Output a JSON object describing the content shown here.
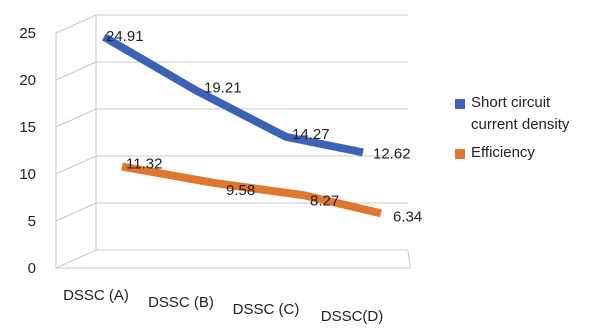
{
  "chart_data": {
    "type": "line",
    "categories": [
      "DSSC (A)",
      "DSSC (B)",
      "DSSC (C)",
      "DSSC(D)"
    ],
    "series": [
      {
        "name": "Short circuit current density",
        "values": [
          24.91,
          19.21,
          14.27,
          12.62
        ],
        "color": "#3c62b5"
      },
      {
        "name": "Efficiency",
        "values": [
          11.32,
          9.58,
          8.27,
          6.34
        ],
        "color": "#e0772e"
      }
    ],
    "yticks": [
      0,
      5,
      10,
      15,
      20,
      25
    ],
    "ylim": [
      0,
      25
    ],
    "grid": true,
    "legend_position": "right",
    "legend_labels": [
      "Short circuit",
      "current density",
      "Efficiency"
    ]
  }
}
